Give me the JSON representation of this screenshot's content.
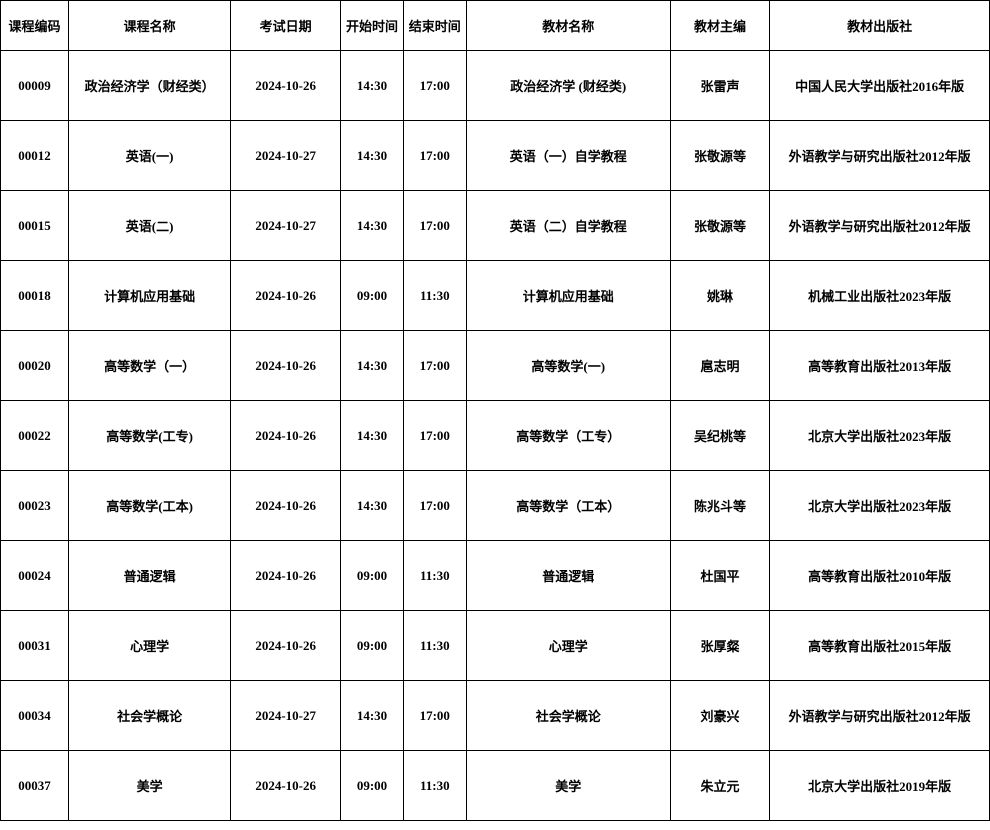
{
  "table": {
    "headers": {
      "code": "课程编码",
      "name": "课程名称",
      "date": "考试日期",
      "start": "开始时间",
      "end": "结束时间",
      "book": "教材名称",
      "editor": "教材主编",
      "publisher": "教材出版社"
    },
    "rows": [
      {
        "code": "00009",
        "name": "政治经济学（财经类）",
        "date": "2024-10-26",
        "start": "14:30",
        "end": "17:00",
        "book": "政治经济学 (财经类)",
        "editor": "张雷声",
        "publisher": "中国人民大学出版社2016年版"
      },
      {
        "code": "00012",
        "name": "英语(一)",
        "date": "2024-10-27",
        "start": "14:30",
        "end": "17:00",
        "book": "英语（一）自学教程",
        "editor": "张敬源等",
        "publisher": "外语教学与研究出版社2012年版"
      },
      {
        "code": "00015",
        "name": "英语(二)",
        "date": "2024-10-27",
        "start": "14:30",
        "end": "17:00",
        "book": "英语（二）自学教程",
        "editor": "张敬源等",
        "publisher": "外语教学与研究出版社2012年版"
      },
      {
        "code": "00018",
        "name": "计算机应用基础",
        "date": "2024-10-26",
        "start": "09:00",
        "end": "11:30",
        "book": "计算机应用基础",
        "editor": "姚琳",
        "publisher": "机械工业出版社2023年版"
      },
      {
        "code": "00020",
        "name": "高等数学（一）",
        "date": "2024-10-26",
        "start": "14:30",
        "end": "17:00",
        "book": "高等数学(一)",
        "editor": "扈志明",
        "publisher": "高等教育出版社2013年版"
      },
      {
        "code": "00022",
        "name": "高等数学(工专)",
        "date": "2024-10-26",
        "start": "14:30",
        "end": "17:00",
        "book": "高等数学（工专）",
        "editor": "吴纪桃等",
        "publisher": "北京大学出版社2023年版"
      },
      {
        "code": "00023",
        "name": "高等数学(工本)",
        "date": "2024-10-26",
        "start": "14:30",
        "end": "17:00",
        "book": "高等数学（工本）",
        "editor": "陈兆斗等",
        "publisher": "北京大学出版社2023年版"
      },
      {
        "code": "00024",
        "name": "普通逻辑",
        "date": "2024-10-26",
        "start": "09:00",
        "end": "11:30",
        "book": "普通逻辑",
        "editor": "杜国平",
        "publisher": "高等教育出版社2010年版"
      },
      {
        "code": "00031",
        "name": "心理学",
        "date": "2024-10-26",
        "start": "09:00",
        "end": "11:30",
        "book": "心理学",
        "editor": "张厚粲",
        "publisher": "高等教育出版社2015年版"
      },
      {
        "code": "00034",
        "name": "社会学概论",
        "date": "2024-10-27",
        "start": "14:30",
        "end": "17:00",
        "book": "社会学概论",
        "editor": "刘豪兴",
        "publisher": "外语教学与研究出版社2012年版"
      },
      {
        "code": "00037",
        "name": "美学",
        "date": "2024-10-26",
        "start": "09:00",
        "end": "11:30",
        "book": "美学",
        "editor": "朱立元",
        "publisher": "北京大学出版社2019年版"
      }
    ],
    "styling": {
      "background_color": "#ffffff",
      "border_color": "#000000",
      "text_color": "#000000",
      "font_family": "SimSun",
      "header_fontsize": 13,
      "cell_fontsize": 13,
      "font_weight": "bold",
      "header_row_height": 50,
      "data_row_height": 70,
      "column_widths": {
        "code": 65,
        "name": 155,
        "date": 105,
        "start": 60,
        "end": 60,
        "book": 195,
        "editor": 95,
        "publisher": 210
      },
      "text_align": "center",
      "vertical_align": "middle"
    }
  }
}
